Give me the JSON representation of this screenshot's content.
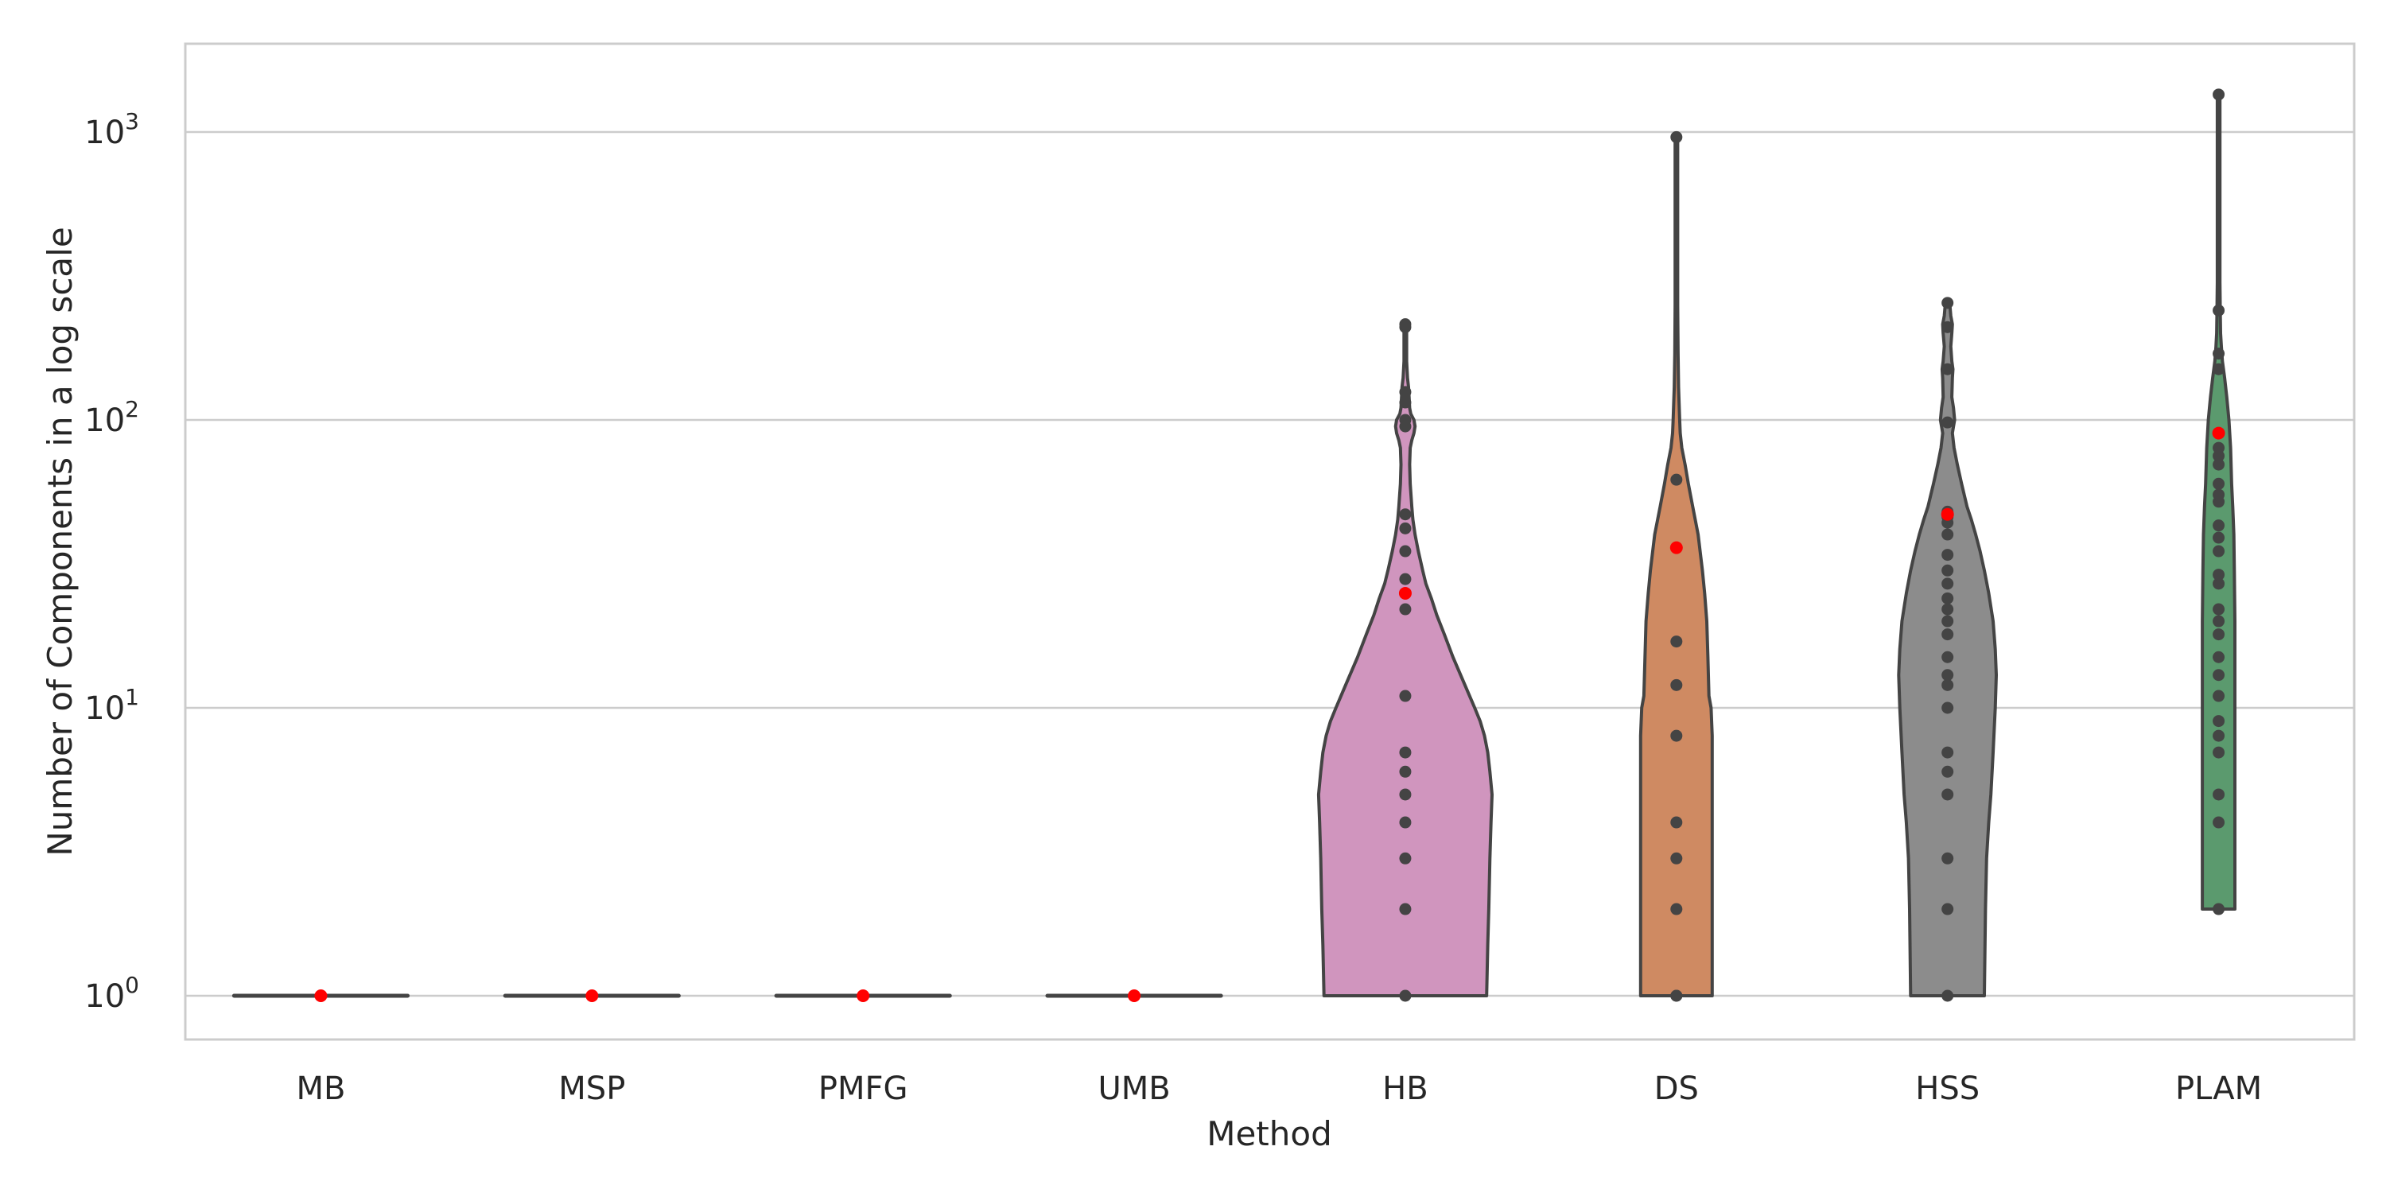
{
  "chart_data": {
    "type": "violin",
    "title": "",
    "xlabel": "Method",
    "ylabel": "Number of Components in a log scale",
    "yscale": "log",
    "ylim": [
      0.7,
      2000
    ],
    "yticks": [
      {
        "value": 1,
        "base": "10",
        "exp": "0"
      },
      {
        "value": 10,
        "base": "10",
        "exp": "1"
      },
      {
        "value": 100,
        "base": "10",
        "exp": "2"
      },
      {
        "value": 1000,
        "base": "10",
        "exp": "3"
      }
    ],
    "grid": "horizontal",
    "categories": [
      "MB",
      "MSP",
      "PMFG",
      "UMB",
      "HB",
      "DS",
      "HSS",
      "PLAM"
    ],
    "series": [
      {
        "category": "MB",
        "color": "#d9a2b3",
        "profile": [
          [
            1,
            0.8
          ]
        ],
        "points": [
          1
        ],
        "mean": 1
      },
      {
        "category": "MSP",
        "color": "#d9a2b3",
        "profile": [
          [
            1,
            0.8
          ]
        ],
        "points": [
          1
        ],
        "mean": 1
      },
      {
        "category": "PMFG",
        "color": "#d9a2b3",
        "profile": [
          [
            1,
            0.8
          ]
        ],
        "points": [
          1
        ],
        "mean": 1
      },
      {
        "category": "UMB",
        "color": "#d9a2b3",
        "profile": [
          [
            1,
            0.8
          ]
        ],
        "points": [
          1
        ],
        "mean": 1
      },
      {
        "category": "HB",
        "color": "#d095be",
        "profile": [
          [
            1,
            0.75
          ],
          [
            1.5,
            0.76
          ],
          [
            2,
            0.77
          ],
          [
            3,
            0.78
          ],
          [
            4,
            0.79
          ],
          [
            5,
            0.8
          ],
          [
            6,
            0.78
          ],
          [
            7,
            0.76
          ],
          [
            8,
            0.73
          ],
          [
            9,
            0.69
          ],
          [
            10,
            0.64
          ],
          [
            12,
            0.55
          ],
          [
            15,
            0.44
          ],
          [
            18,
            0.36
          ],
          [
            21,
            0.29
          ],
          [
            24,
            0.24
          ],
          [
            27,
            0.19
          ],
          [
            30,
            0.16
          ],
          [
            35,
            0.12
          ],
          [
            40,
            0.09
          ],
          [
            45,
            0.07
          ],
          [
            50,
            0.06
          ],
          [
            60,
            0.045
          ],
          [
            70,
            0.04
          ],
          [
            80,
            0.045
          ],
          [
            85,
            0.06
          ],
          [
            90,
            0.08
          ],
          [
            95,
            0.09
          ],
          [
            100,
            0.08
          ],
          [
            105,
            0.05
          ],
          [
            110,
            0.04
          ],
          [
            120,
            0.035
          ],
          [
            130,
            0.03
          ],
          [
            140,
            0.02
          ],
          [
            160,
            0.012
          ],
          [
            180,
            0.012
          ],
          [
            200,
            0.012
          ],
          [
            215,
            0.012
          ]
        ],
        "points": [
          1,
          2,
          3,
          4,
          5,
          6,
          7,
          11,
          22,
          25,
          28,
          35,
          42,
          47,
          95,
          100,
          115,
          125,
          210,
          215
        ],
        "mean": 25
      },
      {
        "category": "DS",
        "color": "#cf8a62",
        "profile": [
          [
            1,
            0.33
          ],
          [
            2,
            0.33
          ],
          [
            3,
            0.33
          ],
          [
            5,
            0.33
          ],
          [
            8,
            0.33
          ],
          [
            10,
            0.32
          ],
          [
            11,
            0.3
          ],
          [
            15,
            0.29
          ],
          [
            20,
            0.28
          ],
          [
            25,
            0.26
          ],
          [
            30,
            0.24
          ],
          [
            40,
            0.2
          ],
          [
            50,
            0.15
          ],
          [
            60,
            0.11
          ],
          [
            70,
            0.08
          ],
          [
            80,
            0.05
          ],
          [
            90,
            0.035
          ],
          [
            100,
            0.03
          ],
          [
            130,
            0.02
          ],
          [
            170,
            0.015
          ],
          [
            250,
            0.012
          ],
          [
            500,
            0.012
          ],
          [
            800,
            0.012
          ],
          [
            960,
            0.012
          ]
        ],
        "points": [
          1,
          1,
          2,
          3,
          4,
          8,
          12,
          17,
          62,
          960
        ],
        "mean": 36
      },
      {
        "category": "HSS",
        "color": "#8c8c8c",
        "profile": [
          [
            1,
            0.34
          ],
          [
            2,
            0.35
          ],
          [
            3,
            0.36
          ],
          [
            4,
            0.38
          ],
          [
            5,
            0.4
          ],
          [
            7,
            0.42
          ],
          [
            10,
            0.44
          ],
          [
            13,
            0.45
          ],
          [
            16,
            0.44
          ],
          [
            20,
            0.42
          ],
          [
            25,
            0.38
          ],
          [
            30,
            0.34
          ],
          [
            35,
            0.3
          ],
          [
            40,
            0.26
          ],
          [
            45,
            0.22
          ],
          [
            50,
            0.18
          ],
          [
            60,
            0.13
          ],
          [
            70,
            0.09
          ],
          [
            80,
            0.06
          ],
          [
            90,
            0.045
          ],
          [
            95,
            0.055
          ],
          [
            100,
            0.065
          ],
          [
            110,
            0.055
          ],
          [
            120,
            0.04
          ],
          [
            140,
            0.045
          ],
          [
            150,
            0.05
          ],
          [
            160,
            0.04
          ],
          [
            180,
            0.03
          ],
          [
            200,
            0.04
          ],
          [
            215,
            0.045
          ],
          [
            230,
            0.03
          ],
          [
            255,
            0.02
          ]
        ],
        "points": [
          1,
          2,
          3,
          5,
          6,
          7,
          10,
          12,
          13,
          15,
          18,
          20,
          22,
          24,
          27,
          30,
          34,
          40,
          44,
          46,
          48,
          98,
          150,
          210,
          255
        ],
        "mean": 47
      },
      {
        "category": "PLAM",
        "color": "#5b9a6e",
        "profile": [
          [
            2,
            0.15
          ],
          [
            3,
            0.15
          ],
          [
            5,
            0.15
          ],
          [
            10,
            0.15
          ],
          [
            20,
            0.15
          ],
          [
            30,
            0.145
          ],
          [
            40,
            0.14
          ],
          [
            50,
            0.13
          ],
          [
            60,
            0.12
          ],
          [
            80,
            0.11
          ],
          [
            100,
            0.095
          ],
          [
            120,
            0.075
          ],
          [
            140,
            0.055
          ],
          [
            160,
            0.035
          ],
          [
            180,
            0.025
          ],
          [
            200,
            0.018
          ],
          [
            240,
            0.015
          ],
          [
            300,
            0.012
          ],
          [
            600,
            0.012
          ],
          [
            1000,
            0.012
          ],
          [
            1350,
            0.012
          ]
        ],
        "points": [
          2,
          4,
          5,
          7,
          8,
          9,
          11,
          13,
          15,
          18,
          20,
          22,
          27,
          29,
          35,
          39,
          43,
          52,
          55,
          60,
          70,
          75,
          80,
          90,
          150,
          170,
          240,
          1350
        ],
        "mean": 90
      }
    ],
    "mean_marker_color": "#ff0000",
    "point_color": "#444444",
    "outline_color": "#444444"
  }
}
